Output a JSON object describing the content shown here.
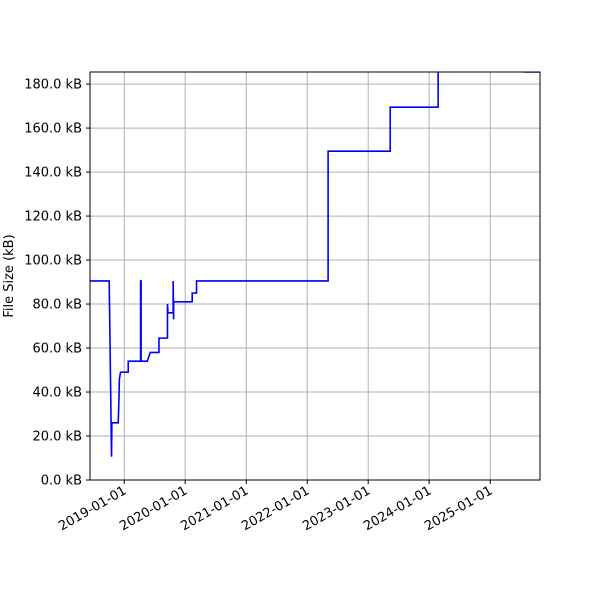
{
  "chart_data": {
    "type": "line",
    "title": "",
    "xlabel": "",
    "ylabel": "File Size (kB)",
    "xlim": [
      "2018-06-10",
      "2025-10-26"
    ],
    "ylim": [
      0,
      185.5
    ],
    "grid": true,
    "line_color": "#0000ff",
    "grid_color": "#b0b0b0",
    "x_ticks": [
      "2019-01-01",
      "2020-01-01",
      "2021-01-01",
      "2022-01-01",
      "2023-01-01",
      "2024-01-01",
      "2025-01-01"
    ],
    "y_ticks": [
      0,
      20,
      40,
      60,
      80,
      100,
      120,
      140,
      160,
      180
    ],
    "y_tick_labels": [
      "0.0 kB",
      "20.0 kB",
      "40.0 kB",
      "60.0 kB",
      "80.0 kB",
      "100.0 kB",
      "120.0 kB",
      "140.0 kB",
      "160.0 kB",
      "180.0 kB"
    ],
    "series": [
      {
        "points": [
          [
            "2018-06-10",
            90.5
          ],
          [
            "2018-10-03",
            90.5
          ],
          [
            "2018-10-17",
            10.6
          ],
          [
            "2018-10-19",
            26
          ],
          [
            "2018-11-26",
            26
          ],
          [
            "2018-11-30",
            36
          ],
          [
            "2018-12-03",
            46
          ],
          [
            "2018-12-10",
            49
          ],
          [
            "2019-01-25",
            49
          ],
          [
            "2019-01-25",
            54
          ],
          [
            "2019-04-09",
            54
          ],
          [
            "2019-04-09",
            90.5
          ],
          [
            "2019-04-12",
            90.5
          ],
          [
            "2019-04-12",
            54
          ],
          [
            "2019-05-19",
            54
          ],
          [
            "2019-06-06",
            58
          ],
          [
            "2019-07-28",
            58
          ],
          [
            "2019-07-28",
            64.5
          ],
          [
            "2019-09-17",
            64.5
          ],
          [
            "2019-09-17",
            80
          ],
          [
            "2019-09-20",
            76
          ],
          [
            "2019-10-21",
            76
          ],
          [
            "2019-10-21",
            90.5
          ],
          [
            "2019-10-24",
            73
          ],
          [
            "2019-10-24",
            81
          ],
          [
            "2020-02-12",
            81
          ],
          [
            "2020-02-12",
            85
          ],
          [
            "2020-03-09",
            85
          ],
          [
            "2020-03-09",
            90.5
          ],
          [
            "2022-05-06",
            90.5
          ],
          [
            "2022-05-06",
            149.5
          ],
          [
            "2023-05-13",
            149.5
          ],
          [
            "2023-05-13",
            169.5
          ],
          [
            "2024-02-24",
            169.5
          ],
          [
            "2024-02-24",
            200
          ],
          [
            "2025-07-23",
            200
          ],
          [
            "2025-07-23",
            185.5
          ],
          [
            "2025-10-26",
            185.5
          ]
        ]
      }
    ]
  }
}
